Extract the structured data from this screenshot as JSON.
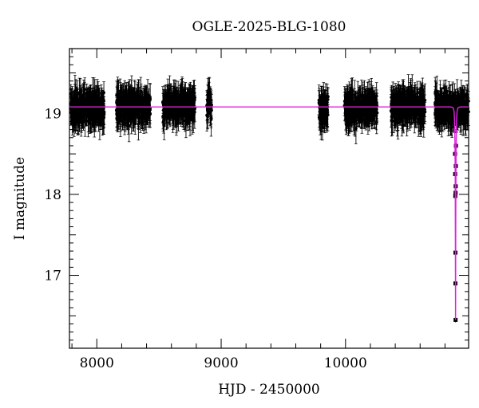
{
  "chart_data": {
    "type": "scatter",
    "title": "OGLE-2025-BLG-1080",
    "xlabel": "HJD - 2450000",
    "ylabel": "I magnitude",
    "xlim": [
      7780,
      10990
    ],
    "ylim": [
      19.8,
      16.1
    ],
    "y_inverted": true,
    "x_ticks": [
      8000,
      9000,
      10000
    ],
    "y_ticks": [
      17,
      18,
      19
    ],
    "baseline_mag": 19.08,
    "observing_seasons": [
      {
        "start": 7790,
        "end": 8060,
        "mean": 19.07
      },
      {
        "start": 8155,
        "end": 8430,
        "mean": 19.08
      },
      {
        "start": 8530,
        "end": 8790,
        "mean": 19.09
      },
      {
        "start": 8885,
        "end": 8925,
        "mean": 19.1
      },
      {
        "start": 9785,
        "end": 9860,
        "mean": 19.05
      },
      {
        "start": 9990,
        "end": 10255,
        "mean": 19.07
      },
      {
        "start": 10365,
        "end": 10640,
        "mean": 19.08
      },
      {
        "start": 10720,
        "end": 10990,
        "mean": 19.06
      }
    ],
    "event": {
      "t0": 10885,
      "peak_mag": 16.45,
      "points": [
        {
          "x": 10885,
          "y": 16.45
        },
        {
          "x": 10884,
          "y": 16.9
        },
        {
          "x": 10884,
          "y": 17.28
        },
        {
          "x": 10883,
          "y": 17.98
        },
        {
          "x": 10885,
          "y": 18.02
        },
        {
          "x": 10886,
          "y": 18.1
        },
        {
          "x": 10882,
          "y": 18.25
        },
        {
          "x": 10887,
          "y": 18.35
        },
        {
          "x": 10881,
          "y": 18.5
        },
        {
          "x": 10888,
          "y": 18.6
        }
      ]
    },
    "model_color": "#e020e0",
    "marker_color": "#000000"
  }
}
